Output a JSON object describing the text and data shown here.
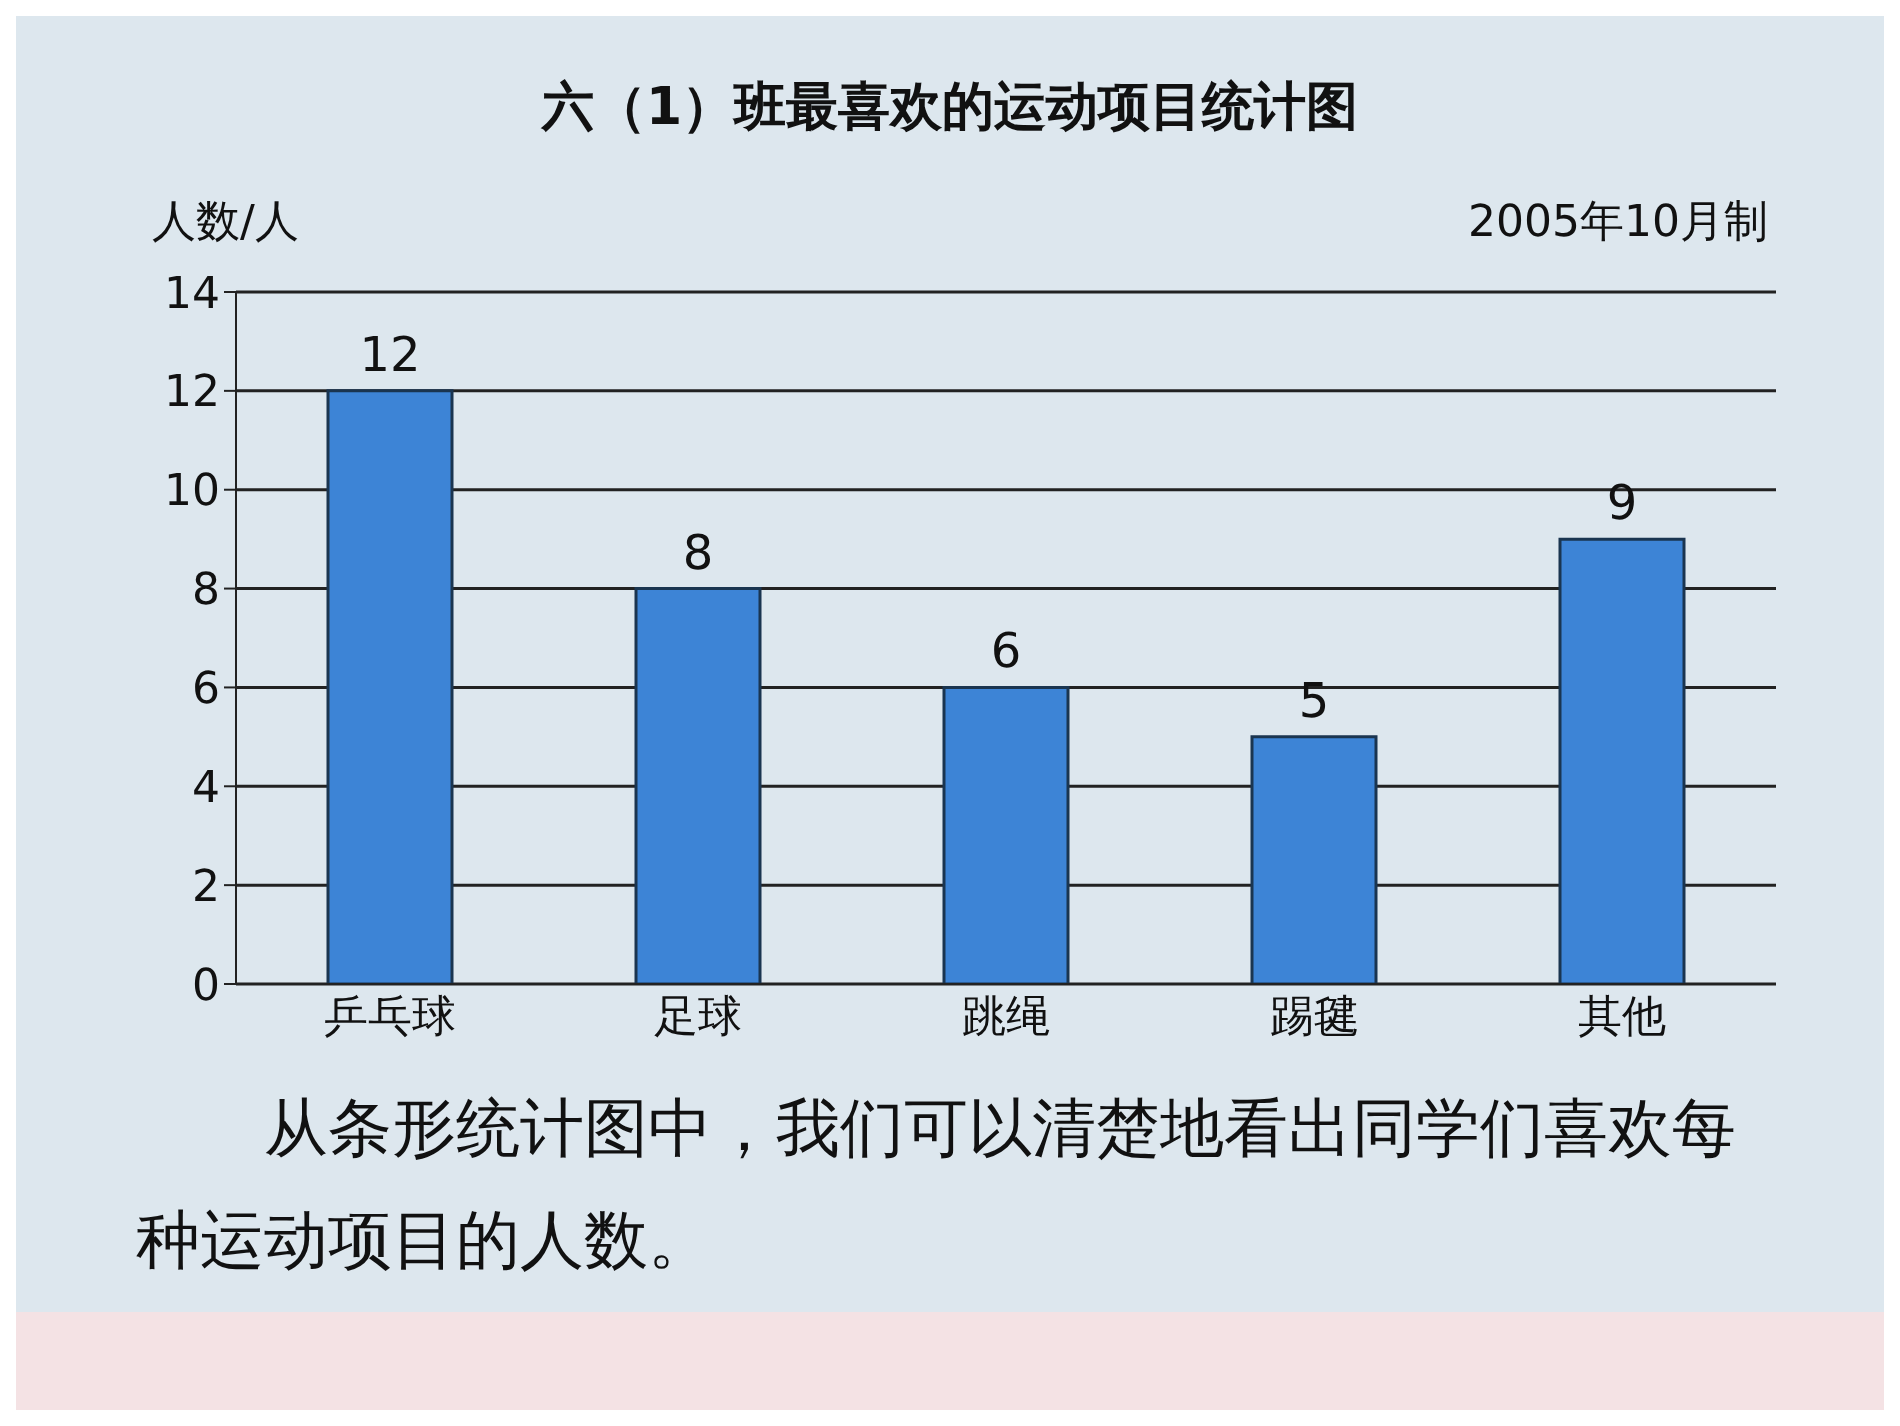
{
  "chart_data": {
    "type": "bar",
    "title": "六（1）班最喜欢的运动项目统计图",
    "ylabel": "人数/人",
    "annotations": [
      "2005年10月制",
      "从条形统计图中，我们可以清楚地看出同学们喜欢每种运动项目的人数。"
    ],
    "categories": [
      "乒乓球",
      "足球",
      "跳绳",
      "踢毽",
      "其他"
    ],
    "values": [
      12,
      8,
      6,
      5,
      9
    ],
    "color": "#3d84d6",
    "ylim": [
      0,
      14
    ],
    "yticks": [
      0,
      2,
      4,
      6,
      8,
      10,
      12,
      14
    ],
    "grid": "y",
    "data_labels": true
  }
}
